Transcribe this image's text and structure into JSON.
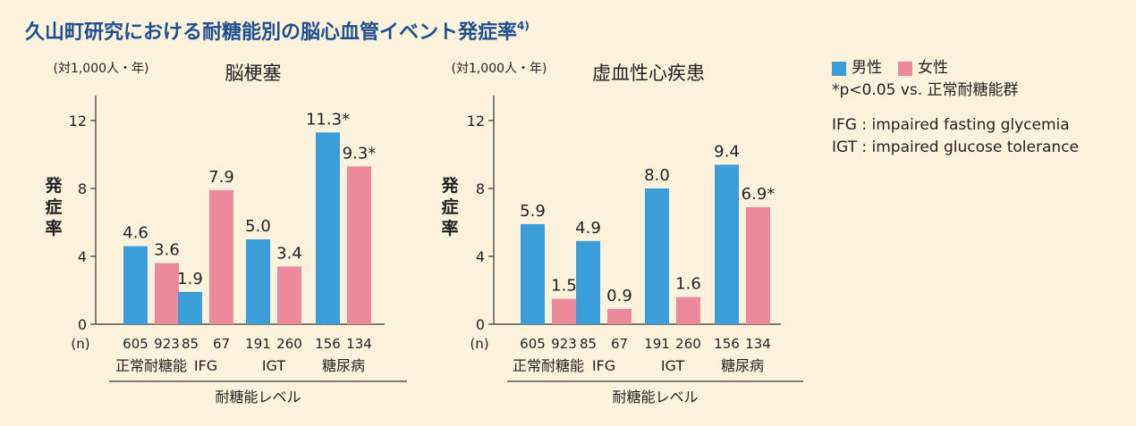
{
  "title": "久山町研究における耐糖能別の脳心血管イベント発症率",
  "title_ref": "4)",
  "colors": {
    "male": "#3b9ed8",
    "female": "#ec8a9c",
    "axis": "#333333",
    "title": "#1f4f8f"
  },
  "legend": {
    "male": "男性",
    "female": "女性",
    "note": "*p<0.05 vs. 正常耐糖能群",
    "abbr": [
      "IFG : impaired fasting glycemia",
      "IGT : impaired glucose tolerance"
    ]
  },
  "chart_data": [
    {
      "type": "bar",
      "title": "脳梗塞",
      "unit_label": "(対1,000人・年)",
      "ylabel": "発症率",
      "xlabel": "耐糖能レベル",
      "n_label": "(n)",
      "ylim": [
        0,
        14
      ],
      "yticks": [
        0,
        4,
        8,
        12
      ],
      "categories": [
        "正常耐糖能",
        "IFG",
        "IGT",
        "糖尿病"
      ],
      "series": [
        {
          "name": "男性",
          "values": [
            4.6,
            1.9,
            5.0,
            11.3
          ],
          "labels": [
            "4.6",
            "1.9",
            "5.0",
            "11.3*"
          ],
          "n": [
            "605",
            "85",
            "191",
            "156"
          ]
        },
        {
          "name": "女性",
          "values": [
            3.6,
            7.9,
            3.4,
            9.3
          ],
          "labels": [
            "3.6",
            "7.9",
            "3.4",
            "9.3*"
          ],
          "n": [
            "923",
            "67",
            "260",
            "134"
          ]
        }
      ]
    },
    {
      "type": "bar",
      "title": "虚血性心疾患",
      "unit_label": "(対1,000人・年)",
      "ylabel": "発症率",
      "xlabel": "耐糖能レベル",
      "n_label": "(n)",
      "ylim": [
        0,
        14
      ],
      "yticks": [
        0,
        4,
        8,
        12
      ],
      "categories": [
        "正常耐糖能",
        "IFG",
        "IGT",
        "糖尿病"
      ],
      "series": [
        {
          "name": "男性",
          "values": [
            5.9,
            4.9,
            8.0,
            9.4
          ],
          "labels": [
            "5.9",
            "4.9",
            "8.0",
            "9.4"
          ],
          "n": [
            "605",
            "85",
            "191",
            "156"
          ]
        },
        {
          "name": "女性",
          "values": [
            1.5,
            0.9,
            1.6,
            6.9
          ],
          "labels": [
            "1.5",
            "0.9",
            "1.6",
            "6.9*"
          ],
          "n": [
            "923",
            "67",
            "260",
            "134"
          ]
        }
      ]
    }
  ]
}
